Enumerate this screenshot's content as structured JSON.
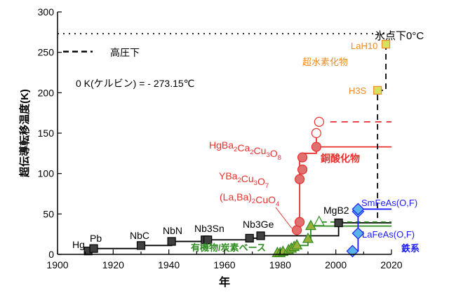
{
  "chart_data": {
    "type": "scatter",
    "title": "",
    "xlabel": "年",
    "ylabel": "超伝導転移温度(K)",
    "xlim": [
      1900,
      2020
    ],
    "ylim": [
      0,
      300
    ],
    "xticks": [
      1900,
      1920,
      1940,
      1960,
      1980,
      2000,
      2020
    ],
    "yticks": [
      0,
      50,
      100,
      150,
      200,
      250,
      300
    ],
    "grid": false,
    "colors": {
      "conventional": "#000000",
      "cuprate": "#e8302c",
      "cuprate_fill": "#e07070",
      "organic": "#2e8b1f",
      "organic_fill": "#9aae3a",
      "iron": "#1a1aff",
      "iron_fill": "#5ab4ea",
      "hydride": "#f08a24",
      "hydride_fill": "#d8e060"
    },
    "reference_line": {
      "y": 273,
      "label": "氷点下0°C",
      "style": "dotted"
    },
    "legend": {
      "dash_label": "高圧下",
      "placement": "top-left"
    },
    "note": "0 K(ケルビン) = - 273.15℃",
    "series": [
      {
        "name": "",
        "group": "conventional",
        "marker": "square",
        "points": [
          [
            1911,
            4.2
          ],
          [
            1913,
            7.2
          ],
          [
            1930,
            11
          ],
          [
            1941,
            16
          ],
          [
            1953,
            18
          ],
          [
            1954,
            18
          ],
          [
            1969,
            20
          ],
          [
            1973,
            23
          ],
          [
            2001,
            39
          ]
        ],
        "labels": [
          {
            "text": "Hg",
            "formula": true
          },
          {
            "text": "Pb",
            "formula": true
          },
          {
            "text": "NbC",
            "formula": true
          },
          {
            "text": "NbN",
            "formula": true
          },
          {
            "text": "Nb3Sn",
            "formula": true
          },
          {
            "text": "Nb3Ge",
            "formula": true
          },
          {
            "text": "MgB2",
            "formula": true
          }
        ]
      },
      {
        "name": "銅酸化物",
        "group": "cuprate",
        "marker": "circle",
        "points": [
          [
            1986,
            30
          ],
          [
            1987,
            40
          ],
          [
            1987,
            93
          ],
          [
            1988,
            105
          ],
          [
            1988,
            120
          ],
          [
            1993,
            133
          ]
        ],
        "pressure_points": [
          [
            1993,
            150
          ],
          [
            1994,
            164
          ]
        ],
        "labels": [
          {
            "text": "(La,Ba)2CuO4",
            "formula": true
          },
          {
            "text": "YBa2Cu3O7",
            "formula": true
          },
          {
            "text": "HgBa2Ca2Cu3O8",
            "formula": true
          }
        ]
      },
      {
        "name": "有機物/炭素ベース",
        "group": "organic",
        "marker": "triangle",
        "points": [
          [
            1979,
            1.5
          ],
          [
            1980,
            1.5
          ],
          [
            1981,
            3
          ],
          [
            1983,
            5
          ],
          [
            1984,
            7
          ],
          [
            1985,
            9
          ],
          [
            1986,
            11
          ],
          [
            1990,
            19
          ],
          [
            1991,
            35
          ]
        ],
        "pressure_points": [
          [
            1994,
            40
          ]
        ]
      },
      {
        "name": "鉄系",
        "group": "iron",
        "marker": "diamond",
        "points": [
          [
            2006,
            4
          ],
          [
            2008,
            26
          ],
          [
            2008,
            53
          ],
          [
            2008,
            56
          ]
        ],
        "labels": [
          {
            "text": "SmFeAs(O,F)",
            "formula": false
          },
          {
            "text": "LaFeAs(O,F)",
            "formula": false
          }
        ]
      },
      {
        "name": "超水素化物",
        "group": "hydride",
        "marker": "square",
        "points": [
          [
            2015,
            203
          ],
          [
            2018,
            260
          ]
        ],
        "labels": [
          {
            "text": "H3S",
            "formula": true
          },
          {
            "text": "LaH10",
            "formula": true
          }
        ]
      }
    ]
  }
}
